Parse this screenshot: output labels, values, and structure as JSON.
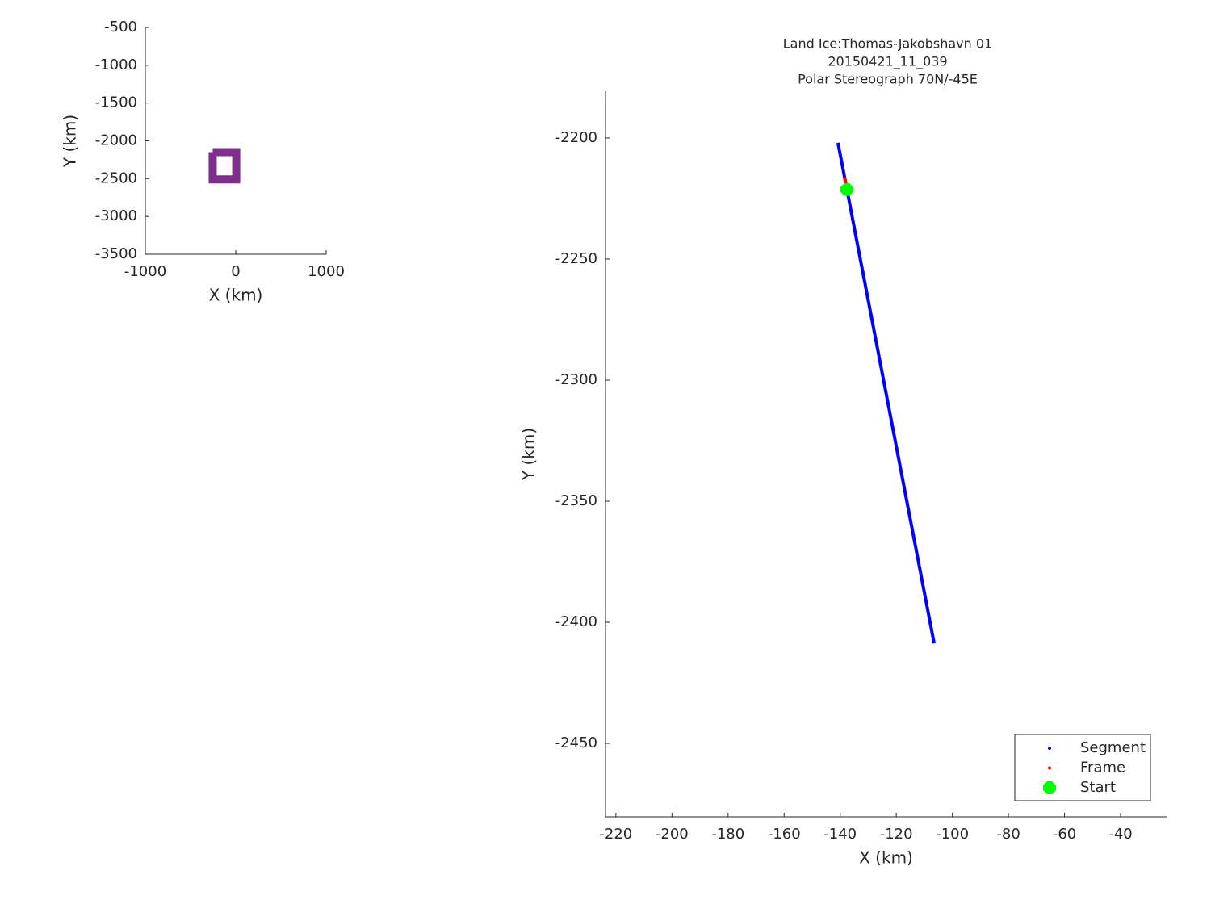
{
  "chart_data": [
    {
      "type": "line",
      "xlabel": "X (km)",
      "ylabel": "Y (km)",
      "xlim": [
        -1000,
        1000
      ],
      "xticks": [
        -1000,
        0,
        1000
      ],
      "ylim": [
        -3500,
        -500
      ],
      "yticks": [
        -3500,
        -3000,
        -2500,
        -2000,
        -1500,
        -1000,
        -500
      ],
      "series": [
        {
          "color": "#7e2f8e",
          "style": "line",
          "x": [
            -255,
            5,
            5,
            -255,
            -255
          ],
          "values": [
            -2150,
            -2150,
            -2510,
            -2510,
            -2150
          ]
        }
      ]
    },
    {
      "type": "line",
      "title": [
        "Land Ice:Thomas-Jakobshavn 01",
        "20150421_11_039",
        "Polar Stereograph 70N/-45E"
      ],
      "xlabel": "X (km)",
      "ylabel": "Y (km)",
      "xlim": [
        -223.7,
        -23.6
      ],
      "xticks": [
        -220,
        -200,
        -180,
        -160,
        -140,
        -120,
        -100,
        -80,
        -60,
        -40
      ],
      "ylim": [
        -2480.3,
        -2180.7
      ],
      "yticks": [
        -2450,
        -2400,
        -2350,
        -2300,
        -2250,
        -2200
      ],
      "legend": "southeast",
      "series": [
        {
          "name": "Segment",
          "color": "#0000ff",
          "style": "line",
          "x": [
            -140.8,
            -106.5
          ],
          "values": [
            -2202,
            -2408.7
          ]
        },
        {
          "name": "Frame",
          "color": "#ff0000",
          "style": "line",
          "x": [
            -138.5,
            -137.9
          ],
          "values": [
            -2216.3,
            -2219
          ]
        },
        {
          "name": "Start",
          "color": "#00ff00",
          "style": "marker",
          "x": [
            -137.6
          ],
          "values": [
            -2221.3
          ]
        }
      ]
    }
  ]
}
